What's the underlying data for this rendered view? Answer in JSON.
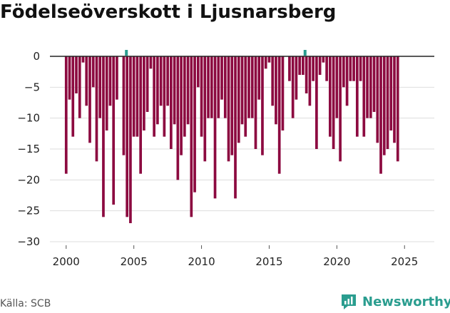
{
  "title": "Födelseöverskott i Ljusnarsberg",
  "source": "Källa: SCB",
  "brand": {
    "name": "Newsworthy",
    "icon": "newsworthy-logo-icon"
  },
  "colors": {
    "bar": "#8c0a40",
    "marker": "#2a9d8f",
    "grid": "#dddddd",
    "baseline": "#222222",
    "brand": "#2a9d8f"
  },
  "chart_data": {
    "type": "bar",
    "title": "Födelseöverskott i Ljusnarsberg",
    "xlabel": "",
    "ylabel": "",
    "ylim": [
      -30,
      0
    ],
    "xlim": [
      1998.8,
      2027.2
    ],
    "y_ticks": [
      0,
      -5,
      -10,
      -15,
      -20,
      -25,
      -30
    ],
    "x_ticks": [
      2000,
      2005,
      2010,
      2015,
      2020,
      2025
    ],
    "grid": true,
    "frequency": "quarterly",
    "start_year": 2000,
    "values": [
      -19,
      -7,
      -13,
      -6,
      -10,
      -1,
      -8,
      -14,
      -5,
      -17,
      -10,
      -26,
      -12,
      -8,
      -24,
      -7,
      0,
      -16,
      -26,
      -27,
      -13,
      -13,
      -19,
      -12,
      -9,
      -2,
      -13,
      -11,
      -8,
      -13,
      -8,
      -15,
      -11,
      -20,
      -16,
      -13,
      -11,
      -26,
      -22,
      -5,
      -13,
      -17,
      -10,
      -10,
      -23,
      -10,
      -7,
      -10,
      -17,
      -16,
      -23,
      -14,
      -11,
      -13,
      -10,
      -10,
      -15,
      -7,
      -16,
      -2,
      -1,
      -8,
      -11,
      -19,
      -12,
      0,
      -4,
      -10,
      -7,
      -3,
      -3,
      -6,
      -8,
      -4,
      -15,
      -3,
      -1,
      -4,
      -13,
      -15,
      -10,
      -17,
      -5,
      -8,
      -4,
      -4,
      -13,
      -4,
      -13,
      -10,
      -10,
      -9,
      -14,
      -19,
      -16,
      -15,
      -12,
      -14,
      -17
    ],
    "markers": [
      {
        "x": 2004.45,
        "label": ""
      },
      {
        "x": 2017.65,
        "label": ""
      }
    ]
  }
}
